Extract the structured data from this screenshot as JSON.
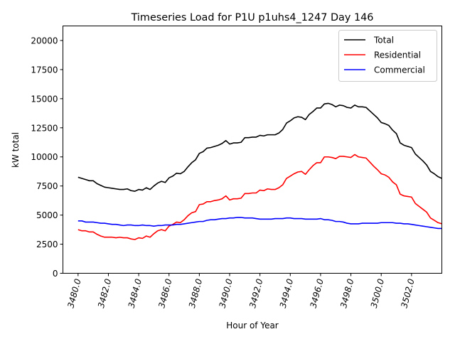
{
  "chart_data": {
    "type": "line",
    "title": "Timeseries Load for P1U p1uhs4_1247  Day 146",
    "xlabel": "Hour of Year",
    "ylabel": "kW total",
    "xlim": [
      3479.0,
      3504.0
    ],
    "ylim": [
      0,
      21250
    ],
    "x_start": 3480.0,
    "x_step": 0.25,
    "x_ticks": [
      3480,
      3482,
      3484,
      3486,
      3488,
      3490,
      3492,
      3494,
      3496,
      3498,
      3500,
      3502
    ],
    "x_tick_labels": [
      "3480.0",
      "3482.0",
      "3484.0",
      "3486.0",
      "3488.0",
      "3490.0",
      "3492.0",
      "3494.0",
      "3496.0",
      "3498.0",
      "3500.0",
      "3502.0"
    ],
    "y_ticks": [
      0,
      2500,
      5000,
      7500,
      10000,
      12500,
      15000,
      17500,
      20000
    ],
    "y_tick_labels": [
      "0",
      "2500",
      "5000",
      "7500",
      "10000",
      "12500",
      "15000",
      "17500",
      "20000"
    ],
    "grid": false,
    "legend_position": "top-right",
    "series": [
      {
        "name": "Total",
        "color": "#000000",
        "values": [
          8250,
          8150,
          8050,
          7950,
          7950,
          7700,
          7550,
          7400,
          7350,
          7300,
          7250,
          7200,
          7200,
          7250,
          7100,
          7050,
          7200,
          7150,
          7350,
          7200,
          7500,
          7750,
          7900,
          7800,
          8200,
          8350,
          8600,
          8550,
          8750,
          9150,
          9500,
          9750,
          10300,
          10450,
          10750,
          10800,
          10900,
          11000,
          11150,
          11400,
          11100,
          11200,
          11200,
          11250,
          11650,
          11650,
          11700,
          11700,
          11850,
          11800,
          11900,
          11900,
          11900,
          12050,
          12350,
          12900,
          13100,
          13350,
          13450,
          13400,
          13200,
          13650,
          13900,
          14200,
          14200,
          14550,
          14600,
          14500,
          14300,
          14450,
          14400,
          14250,
          14200,
          14450,
          14300,
          14300,
          14250,
          13950,
          13650,
          13350,
          12950,
          12850,
          12700,
          12300,
          12000,
          11200,
          11000,
          10900,
          10800,
          10250,
          9950,
          9650,
          9300,
          8750,
          8550,
          8300,
          8150
        ]
      },
      {
        "name": "Residential",
        "color": "#ff0000",
        "values": [
          3750,
          3650,
          3650,
          3550,
          3550,
          3350,
          3200,
          3100,
          3100,
          3100,
          3050,
          3100,
          3050,
          3050,
          2950,
          2900,
          3050,
          3000,
          3200,
          3100,
          3400,
          3650,
          3750,
          3650,
          4050,
          4200,
          4400,
          4350,
          4600,
          4950,
          5200,
          5300,
          5900,
          5950,
          6150,
          6150,
          6250,
          6300,
          6400,
          6650,
          6300,
          6400,
          6400,
          6450,
          6850,
          6850,
          6900,
          6900,
          7150,
          7100,
          7250,
          7200,
          7200,
          7350,
          7600,
          8150,
          8350,
          8550,
          8700,
          8750,
          8500,
          8900,
          9250,
          9500,
          9500,
          10000,
          10000,
          9950,
          9850,
          10050,
          10050,
          10000,
          9950,
          10200,
          10000,
          9950,
          9900,
          9550,
          9200,
          8900,
          8550,
          8450,
          8250,
          7850,
          7600,
          6800,
          6650,
          6600,
          6550,
          6000,
          5750,
          5500,
          5250,
          4750,
          4550,
          4350,
          4250
        ]
      },
      {
        "name": "Commercial",
        "color": "#0000ff",
        "values": [
          4500,
          4500,
          4400,
          4400,
          4400,
          4350,
          4300,
          4300,
          4250,
          4200,
          4200,
          4150,
          4100,
          4150,
          4150,
          4100,
          4100,
          4150,
          4100,
          4100,
          4050,
          4100,
          4100,
          4150,
          4150,
          4150,
          4200,
          4200,
          4250,
          4300,
          4350,
          4400,
          4450,
          4450,
          4550,
          4600,
          4600,
          4650,
          4700,
          4700,
          4750,
          4750,
          4800,
          4800,
          4750,
          4750,
          4750,
          4700,
          4650,
          4650,
          4650,
          4650,
          4700,
          4700,
          4700,
          4750,
          4750,
          4700,
          4700,
          4700,
          4650,
          4650,
          4650,
          4650,
          4700,
          4600,
          4600,
          4550,
          4450,
          4450,
          4400,
          4300,
          4250,
          4250,
          4250,
          4300,
          4300,
          4300,
          4300,
          4300,
          4350,
          4350,
          4350,
          4350,
          4300,
          4300,
          4250,
          4250,
          4200,
          4150,
          4100,
          4050,
          4000,
          3950,
          3900,
          3850,
          3850
        ]
      }
    ]
  }
}
